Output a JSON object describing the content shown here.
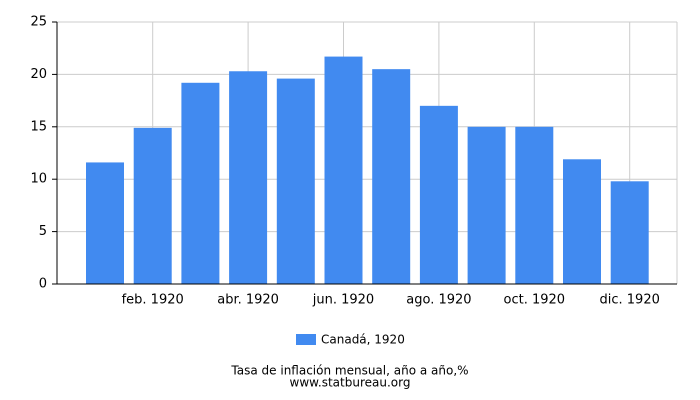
{
  "chart_data": {
    "type": "bar",
    "categories": [
      null,
      "feb. 1920",
      null,
      "abr. 1920",
      null,
      "jun. 1920",
      null,
      "ago. 1920",
      null,
      "oct. 1920",
      null,
      "dic. 1920"
    ],
    "series": [
      {
        "name": "Canadá, 1920",
        "color": "#418af0",
        "values": [
          11.6,
          14.9,
          19.2,
          20.3,
          19.6,
          21.7,
          20.5,
          17.0,
          15.0,
          15.0,
          11.9,
          9.8
        ]
      }
    ],
    "ylim": [
      0,
      25
    ],
    "yticks": [
      0,
      5,
      10,
      15,
      20,
      25
    ],
    "grid": true,
    "title": "Tasa de inflación mensual, año a año,%",
    "source": "www.statbureau.org"
  }
}
